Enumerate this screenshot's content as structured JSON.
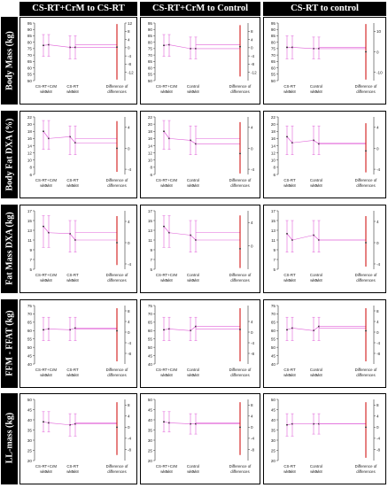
{
  "column_titles": [
    "CS-RT+CrM to CS-RT",
    "CS-RT+CrM to Control",
    "CS-RT to control"
  ],
  "row_labels": [
    "Body Mass (kg)",
    "Body Fat DXA (%)",
    "Fat Mass DXA (kg)",
    "FFM - FFAT (kg)",
    "LL-mass (kg)"
  ],
  "colors": {
    "line": "#e060d8",
    "ci_bar": "#e060d8",
    "diff_bar": "#cc0000",
    "title_bg": "#000000",
    "title_fg": "#ffffff"
  },
  "chart_data": [
    {
      "type": "line",
      "panel_title": "CS-RT+CrM to CS-RT",
      "row": 0,
      "col": 0,
      "ylim": [
        50,
        95
      ],
      "yticks": [
        50,
        55,
        60,
        65,
        70,
        75,
        80,
        85,
        90,
        95
      ],
      "diff_ylim": [
        -16,
        12
      ],
      "diff_ticks": [
        12,
        8,
        4,
        0,
        -4,
        -8,
        -12
      ],
      "groups": [
        {
          "label": "CS-RT+CrM",
          "wk0": 77.5,
          "wk8": 78.0,
          "ci": [
            69,
            86
          ]
        },
        {
          "label": "CS-RT",
          "wk0": 76.0,
          "wk8": 76.0,
          "ci": [
            67,
            85
          ]
        }
      ],
      "diff_label": "Difference of differences",
      "diff_value": 0.3,
      "diff_ci": [
        -15.5,
        11.5
      ]
    },
    {
      "type": "line",
      "panel_title": "CS-RT+CrM to Control",
      "row": 0,
      "col": 1,
      "ylim": [
        50,
        95
      ],
      "yticks": [
        50,
        55,
        60,
        65,
        70,
        75,
        80,
        85,
        90,
        95
      ],
      "diff_ylim": [
        -16,
        12
      ],
      "diff_ticks": [
        8,
        4,
        0,
        -4,
        -8,
        -12
      ],
      "groups": [
        {
          "label": "CS-RT+CrM",
          "wk0": 77.5,
          "wk8": 78.0,
          "ci": [
            69,
            86
          ]
        },
        {
          "label": "Control",
          "wk0": 75.0,
          "wk8": 75.0,
          "ci": [
            67,
            84
          ]
        }
      ],
      "diff_label": "Difference of differences",
      "diff_value": 0.5,
      "diff_ci": [
        -14,
        11
      ]
    },
    {
      "type": "line",
      "panel_title": "CS-RT to control",
      "row": 0,
      "col": 2,
      "ylim": [
        50,
        95
      ],
      "yticks": [
        50,
        55,
        60,
        65,
        70,
        75,
        80,
        85,
        90,
        95
      ],
      "diff_ylim": [
        -14,
        14
      ],
      "diff_ticks": [
        10,
        0,
        -10
      ],
      "groups": [
        {
          "label": "CS-RT",
          "wk0": 76.0,
          "wk8": 76.0,
          "ci": [
            67,
            85
          ]
        },
        {
          "label": "Control",
          "wk0": 75.0,
          "wk8": 75.0,
          "ci": [
            67,
            84
          ]
        }
      ],
      "diff_label": "Difference of differences",
      "diff_value": 0.0,
      "diff_ci": [
        -13.5,
        13.5
      ]
    },
    {
      "type": "line",
      "panel_title": "CS-RT+CrM to CS-RT",
      "row": 1,
      "col": 0,
      "ylim": [
        6,
        22
      ],
      "yticks": [
        6,
        8,
        10,
        12,
        14,
        16,
        18,
        20,
        22
      ],
      "diff_ylim": [
        -5,
        6
      ],
      "diff_ticks": [
        4,
        0,
        -4
      ],
      "groups": [
        {
          "label": "CS-RT+CrM",
          "wk0": 18.0,
          "wk8": 16.0,
          "ci": [
            13.0,
            21.0
          ]
        },
        {
          "label": "CS-RT",
          "wk0": 16.5,
          "wk8": 14.8,
          "ci": [
            11.5,
            19.5
          ]
        }
      ],
      "diff_label": "Difference of differences",
      "diff_value": 0.0,
      "diff_ci": [
        -4.5,
        5.2
      ]
    },
    {
      "type": "line",
      "panel_title": "CS-RT+CrM to Control",
      "row": 1,
      "col": 1,
      "ylim": [
        6,
        22
      ],
      "yticks": [
        6,
        8,
        10,
        12,
        14,
        16,
        18,
        20,
        22
      ],
      "diff_ylim": [
        -5,
        6
      ],
      "diff_ticks": [
        4,
        0,
        -4
      ],
      "groups": [
        {
          "label": "CS-RT+CrM",
          "wk0": 18.0,
          "wk8": 16.0,
          "ci": [
            13.0,
            21.0
          ]
        },
        {
          "label": "Control",
          "wk0": 15.5,
          "wk8": 14.5,
          "ci": [
            11.5,
            19.5
          ]
        }
      ],
      "diff_label": "Difference of differences",
      "diff_value": -1.0,
      "diff_ci": [
        -4.8,
        5.0
      ]
    },
    {
      "type": "line",
      "panel_title": "CS-RT to control",
      "row": 1,
      "col": 2,
      "ylim": [
        6,
        22
      ],
      "yticks": [
        6,
        8,
        10,
        12,
        14,
        16,
        18,
        20,
        22
      ],
      "diff_ylim": [
        -5,
        6
      ],
      "diff_ticks": [
        4,
        0,
        -4
      ],
      "groups": [
        {
          "label": "CS-RT",
          "wk0": 16.5,
          "wk8": 14.8,
          "ci": [
            11.5,
            19.5
          ]
        },
        {
          "label": "Control",
          "wk0": 15.5,
          "wk8": 14.5,
          "ci": [
            11.5,
            19.5
          ]
        }
      ],
      "diff_label": "Difference of differences",
      "diff_value": -0.5,
      "diff_ci": [
        -4.6,
        4.8
      ]
    },
    {
      "type": "line",
      "panel_title": "CS-RT+CrM to CS-RT",
      "row": 2,
      "col": 0,
      "ylim": [
        5,
        17
      ],
      "yticks": [
        5,
        7,
        9,
        11,
        13,
        15,
        17
      ],
      "diff_ylim": [
        -5,
        6
      ],
      "diff_ticks": [
        4,
        0,
        -4
      ],
      "groups": [
        {
          "label": "CS-RT+CrM",
          "wk0": 13.8,
          "wk8": 12.5,
          "ci": [
            9.5,
            16.0
          ]
        },
        {
          "label": "CS-RT",
          "wk0": 12.3,
          "wk8": 11.0,
          "ci": [
            8.5,
            15.0
          ]
        }
      ],
      "diff_label": "Difference of differences",
      "diff_value": 0.0,
      "diff_ci": [
        -4.2,
        5.0
      ]
    },
    {
      "type": "line",
      "panel_title": "CS-RT+CrM to Control",
      "row": 2,
      "col": 1,
      "ylim": [
        5,
        17
      ],
      "yticks": [
        5,
        7,
        9,
        11,
        13,
        15,
        17
      ],
      "diff_ylim": [
        -4,
        6
      ],
      "diff_ticks": [
        4,
        0
      ],
      "groups": [
        {
          "label": "CS-RT+CrM",
          "wk0": 13.8,
          "wk8": 12.5,
          "ci": [
            9.5,
            16.0
          ]
        },
        {
          "label": "Control",
          "wk0": 12.0,
          "wk8": 11.0,
          "ci": [
            8.5,
            15.0
          ]
        }
      ],
      "diff_label": "Difference of differences",
      "diff_value": -0.5,
      "diff_ci": [
        -3.8,
        5.2
      ]
    },
    {
      "type": "line",
      "panel_title": "CS-RT to control",
      "row": 2,
      "col": 2,
      "ylim": [
        5,
        17
      ],
      "yticks": [
        5,
        7,
        9,
        11,
        13,
        15,
        17
      ],
      "diff_ylim": [
        -5,
        6
      ],
      "diff_ticks": [
        4,
        0,
        -4
      ],
      "groups": [
        {
          "label": "CS-RT",
          "wk0": 12.3,
          "wk8": 11.0,
          "ci": [
            8.5,
            15.0
          ]
        },
        {
          "label": "Control",
          "wk0": 12.0,
          "wk8": 11.0,
          "ci": [
            8.5,
            15.0
          ]
        }
      ],
      "diff_label": "Difference of differences",
      "diff_value": 0.0,
      "diff_ci": [
        -4.5,
        5.0
      ]
    },
    {
      "type": "line",
      "panel_title": "CS-RT+CrM to CS-RT",
      "row": 3,
      "col": 0,
      "ylim": [
        40,
        75
      ],
      "yticks": [
        40,
        45,
        50,
        55,
        60,
        65,
        70,
        75
      ],
      "diff_ylim": [
        -12,
        10
      ],
      "diff_ticks": [
        8,
        4,
        0,
        -4,
        -8
      ],
      "groups": [
        {
          "label": "CS-RT+CrM",
          "wk0": 60.5,
          "wk8": 61.0,
          "ci": [
            54,
            68
          ]
        },
        {
          "label": "CS-RT",
          "wk0": 60.5,
          "wk8": 61.5,
          "ci": [
            54,
            68
          ]
        }
      ],
      "diff_label": "Difference of differences",
      "diff_value": 0.5,
      "diff_ci": [
        -11,
        9
      ]
    },
    {
      "type": "line",
      "panel_title": "CS-RT+CrM to Control",
      "row": 3,
      "col": 1,
      "ylim": [
        40,
        75
      ],
      "yticks": [
        40,
        45,
        50,
        55,
        60,
        65,
        70,
        75
      ],
      "diff_ylim": [
        -12,
        10
      ],
      "diff_ticks": [
        4,
        0,
        -4,
        -8
      ],
      "groups": [
        {
          "label": "CS-RT+CrM",
          "wk0": 60.5,
          "wk8": 61.0,
          "ci": [
            54,
            68
          ]
        },
        {
          "label": "Control",
          "wk0": 60.0,
          "wk8": 62.5,
          "ci": [
            54,
            68
          ]
        }
      ],
      "diff_label": "Difference of differences",
      "diff_value": 1.0,
      "diff_ci": [
        -11,
        9
      ]
    },
    {
      "type": "line",
      "panel_title": "CS-RT to control",
      "row": 3,
      "col": 2,
      "ylim": [
        40,
        75
      ],
      "yticks": [
        40,
        45,
        50,
        55,
        60,
        65,
        70,
        75
      ],
      "diff_ylim": [
        -12,
        10
      ],
      "diff_ticks": [
        8,
        4,
        0,
        -4,
        -8
      ],
      "groups": [
        {
          "label": "CS-RT",
          "wk0": 60.5,
          "wk8": 61.5,
          "ci": [
            54,
            68
          ]
        },
        {
          "label": "Control",
          "wk0": 60.0,
          "wk8": 62.5,
          "ci": [
            54,
            68
          ]
        }
      ],
      "diff_label": "Difference of differences",
      "diff_value": 0.5,
      "diff_ci": [
        -11,
        9
      ]
    },
    {
      "type": "line",
      "panel_title": "CS-RT+CrM to CS-RT",
      "row": 4,
      "col": 0,
      "ylim": [
        20,
        50
      ],
      "yticks": [
        20,
        25,
        30,
        35,
        40,
        45,
        50
      ],
      "diff_ylim": [
        -12,
        10
      ],
      "diff_ticks": [
        8,
        4,
        0,
        -4,
        -8
      ],
      "groups": [
        {
          "label": "CS-RT+CrM",
          "wk0": 39.0,
          "wk8": 38.5,
          "ci": [
            34,
            44
          ]
        },
        {
          "label": "CS-RT",
          "wk0": 37.5,
          "wk8": 38.0,
          "ci": [
            32,
            43
          ]
        }
      ],
      "diff_label": "Difference of differences",
      "diff_value": 0.0,
      "diff_ci": [
        -10,
        9
      ]
    },
    {
      "type": "line",
      "panel_title": "CS-RT+CrM to Control",
      "row": 4,
      "col": 1,
      "ylim": [
        20,
        50
      ],
      "yticks": [
        20,
        25,
        30,
        35,
        40,
        45,
        50
      ],
      "diff_ylim": [
        -12,
        10
      ],
      "diff_ticks": [
        8,
        4,
        0,
        -4,
        -8
      ],
      "groups": [
        {
          "label": "CS-RT+CrM",
          "wk0": 39.0,
          "wk8": 38.5,
          "ci": [
            34,
            44
          ]
        },
        {
          "label": "Control",
          "wk0": 38.0,
          "wk8": 38.0,
          "ci": [
            33,
            43
          ]
        }
      ],
      "diff_label": "Difference of differences",
      "diff_value": 0.0,
      "diff_ci": [
        -10,
        9
      ]
    },
    {
      "type": "line",
      "panel_title": "CS-RT to control",
      "row": 4,
      "col": 2,
      "ylim": [
        20,
        50
      ],
      "yticks": [
        20,
        25,
        30,
        35,
        40,
        45,
        50
      ],
      "diff_ylim": [
        -12,
        10
      ],
      "diff_ticks": [
        8,
        4,
        0,
        -4,
        -8
      ],
      "groups": [
        {
          "label": "CS-RT",
          "wk0": 37.5,
          "wk8": 38.0,
          "ci": [
            32,
            43
          ]
        },
        {
          "label": "Control",
          "wk0": 38.0,
          "wk8": 38.0,
          "ci": [
            33,
            43
          ]
        }
      ],
      "diff_label": "Difference of differences",
      "diff_value": 0.0,
      "diff_ci": [
        -11,
        9
      ]
    }
  ],
  "wk_labels": [
    "wk0",
    "wk8"
  ]
}
